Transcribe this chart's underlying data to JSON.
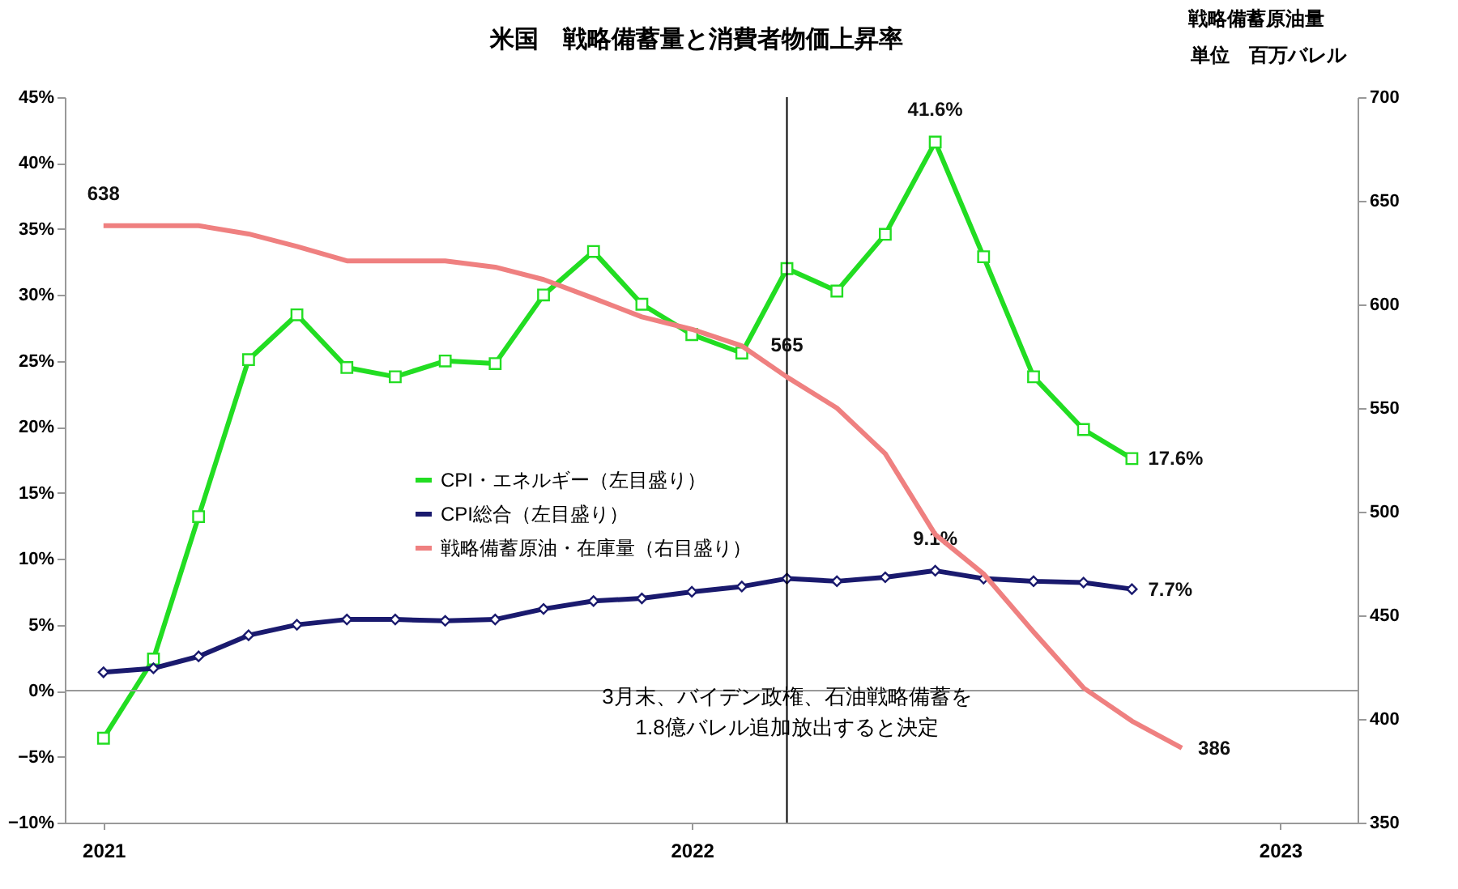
{
  "chart_data": {
    "type": "line",
    "title": "米国　戦略備蓄量と消費者物価上昇率",
    "y2label": "戦略備蓄原油量",
    "x": [
      "2021-01",
      "2021-02",
      "2021-03",
      "2021-04",
      "2021-05",
      "2021-06",
      "2021-07",
      "2021-08",
      "2021-09",
      "2021-10",
      "2021-11",
      "2021-12",
      "2022-01",
      "2022-02",
      "2022-03",
      "2022-04",
      "2022-05",
      "2022-06",
      "2022-07",
      "2022-08",
      "2022-09",
      "2022-10"
    ],
    "series": [
      {
        "name": "CPI・エネルギー（左目盛り）",
        "color": "#22dd22",
        "marker": "square",
        "values": [
          -3.6,
          2.4,
          13.2,
          25.1,
          28.5,
          24.5,
          23.8,
          25.0,
          24.8,
          30.0,
          33.3,
          29.3,
          27.0,
          25.6,
          32.0,
          30.3,
          34.6,
          41.6,
          32.9,
          23.8,
          19.8,
          17.6
        ],
        "value_labels": [
          null,
          null,
          null,
          null,
          null,
          null,
          null,
          null,
          null,
          null,
          null,
          null,
          null,
          null,
          null,
          null,
          null,
          "41.6%",
          null,
          null,
          null,
          "17.6%"
        ]
      },
      {
        "name": "CPI総合（左目盛り）",
        "color": "#1a1a6e",
        "marker": "diamond",
        "values": [
          1.4,
          1.7,
          2.6,
          4.2,
          5.0,
          5.4,
          5.4,
          5.3,
          5.4,
          6.2,
          6.8,
          7.0,
          7.5,
          7.9,
          8.5,
          8.3,
          8.6,
          9.1,
          8.5,
          8.3,
          8.2,
          7.7
        ],
        "value_labels": [
          null,
          null,
          null,
          null,
          null,
          null,
          null,
          null,
          null,
          null,
          null,
          null,
          null,
          null,
          null,
          null,
          null,
          "9.1%",
          null,
          null,
          null,
          "7.7%"
        ]
      },
      {
        "name": "戦略備蓄原油・在庫量（右目盛り）",
        "color": "#ef8080",
        "marker": "none",
        "axis": "y2",
        "x": [
          "2021-01",
          "2021-02",
          "2021-03",
          "2021-04",
          "2021-05",
          "2021-06",
          "2021-07",
          "2021-08",
          "2021-09",
          "2021-10",
          "2021-11",
          "2021-12",
          "2022-01",
          "2022-02",
          "2022-03",
          "2022-04",
          "2022-05",
          "2022-06",
          "2022-07",
          "2022-08",
          "2022-09",
          "2022-10",
          "2022-11"
        ],
        "values": [
          638,
          638,
          638,
          634,
          628,
          621,
          621,
          621,
          618,
          612,
          603,
          594,
          588,
          580,
          565,
          550,
          528,
          489,
          470,
          442,
          415,
          399,
          386
        ],
        "value_labels": [
          "638",
          null,
          null,
          null,
          null,
          null,
          null,
          null,
          null,
          null,
          null,
          null,
          null,
          null,
          "565",
          null,
          null,
          null,
          null,
          null,
          null,
          null,
          "386"
        ]
      }
    ],
    "xlim": [
      "2020-12-08",
      "2023-02-18"
    ],
    "xticks": [
      "2021",
      "2022",
      "2023"
    ],
    "ylim": [
      -10,
      45
    ],
    "yticks": [
      {
        "value": -10,
        "label": "−10%"
      },
      {
        "value": -5,
        "label": "−5%"
      },
      {
        "value": 0,
        "label": "0%"
      },
      {
        "value": 5,
        "label": "5%"
      },
      {
        "value": 10,
        "label": "10%"
      },
      {
        "value": 15,
        "label": "15%"
      },
      {
        "value": 20,
        "label": "20%"
      },
      {
        "value": 25,
        "label": "25%"
      },
      {
        "value": 30,
        "label": "30%"
      },
      {
        "value": 35,
        "label": "35%"
      },
      {
        "value": 40,
        "label": "40%"
      },
      {
        "value": 45,
        "label": "45%"
      }
    ],
    "y2lim": [
      350,
      700
    ],
    "y2ticks": [
      350,
      400,
      450,
      500,
      550,
      600,
      650,
      700
    ],
    "ref_lines": [
      {
        "axis": "x",
        "value": "2022-03",
        "color": "#000000"
      },
      {
        "axis": "y",
        "value": 0,
        "color": "#999999"
      }
    ],
    "annotations": [
      "単位　百万バレル",
      {
        "text": "3月末、バイデン政権、石油戦略備蓄を\n1.8億バレル追加放出すると決定",
        "x": "2022-03",
        "y": -0.5
      }
    ],
    "legend": "left",
    "grid": false
  }
}
